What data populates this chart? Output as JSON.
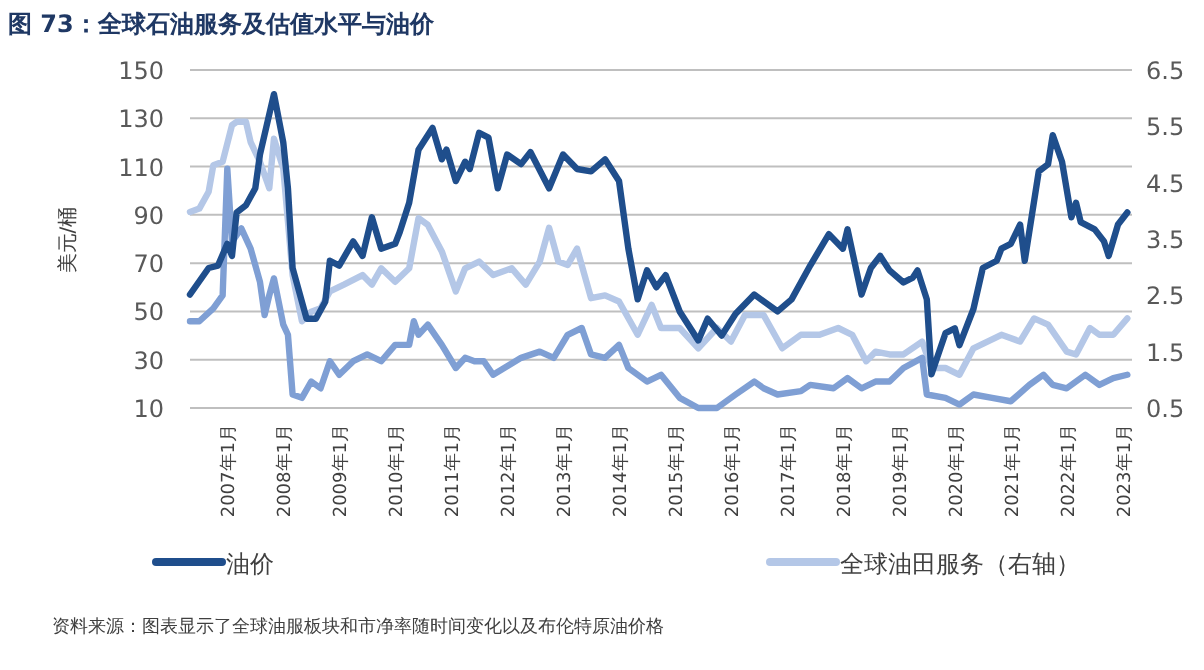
{
  "chart_data": {
    "type": "line",
    "title": "图 73：全球石油服务及估值水平与油价",
    "ylabel": "美元/桶",
    "grid": "y",
    "legend": "bottom",
    "line_style": "solid",
    "marker": "none",
    "annotations": [
      "资料来源：图表显示了全球油服板块和市净率随时间变化以及布伦特原油价格"
    ],
    "xlim": [
      "2006-05",
      "2023-03"
    ],
    "xticks": [
      {
        "value": "2007-01",
        "label": "2007年1月"
      },
      {
        "value": "2008-01",
        "label": "2008年1月"
      },
      {
        "value": "2009-01",
        "label": "2009年1月"
      },
      {
        "value": "2010-01",
        "label": "2010年1月"
      },
      {
        "value": "2011-01",
        "label": "2011年1月"
      },
      {
        "value": "2012-01",
        "label": "2012年1月"
      },
      {
        "value": "2013-01",
        "label": "2013年1月"
      },
      {
        "value": "2014-01",
        "label": "2014年1月"
      },
      {
        "value": "2015-01",
        "label": "2015年1月"
      },
      {
        "value": "2016-01",
        "label": "2016年1月"
      },
      {
        "value": "2017-01",
        "label": "2017年1月"
      },
      {
        "value": "2018-01",
        "label": "2018年1月"
      },
      {
        "value": "2019-01",
        "label": "2019年1月"
      },
      {
        "value": "2020-01",
        "label": "2020年1月"
      },
      {
        "value": "2021-01",
        "label": "2021年1月"
      },
      {
        "value": "2022-01",
        "label": "2022年1月"
      },
      {
        "value": "2023-01",
        "label": "2023年1月"
      }
    ],
    "ylim": [
      10,
      150
    ],
    "yticks": [
      10,
      30,
      50,
      70,
      90,
      110,
      130,
      150
    ],
    "y2lim": [
      0.5,
      6.5
    ],
    "y2ticks": [
      0.5,
      1.5,
      2.5,
      3.5,
      4.5,
      5.5,
      6.5
    ],
    "series": [
      {
        "name": "全球油田服务（右轴）",
        "color": "#b4c7e7",
        "axis": "y2",
        "x": [
          "2006-05",
          "2006-07",
          "2006-09",
          "2006-10",
          "2006-12",
          "2007-02",
          "2007-03",
          "2007-05",
          "2007-06",
          "2007-08",
          "2007-10",
          "2007-11",
          "2008-01",
          "2008-02",
          "2008-03",
          "2008-05",
          "2008-07",
          "2008-09",
          "2008-11",
          "2009-02",
          "2009-06",
          "2009-08",
          "2009-10",
          "2010-01",
          "2010-04",
          "2010-06",
          "2010-08",
          "2010-11",
          "2011-02",
          "2011-04",
          "2011-07",
          "2011-10",
          "2012-02",
          "2012-05",
          "2012-08",
          "2012-10",
          "2012-12",
          "2013-02",
          "2013-04",
          "2013-07",
          "2013-10",
          "2014-01",
          "2014-05",
          "2014-08",
          "2014-10",
          "2015-02",
          "2015-06",
          "2015-10",
          "2016-01",
          "2016-04",
          "2016-08",
          "2016-12",
          "2017-04",
          "2017-08",
          "2017-12",
          "2018-03",
          "2018-06",
          "2018-08",
          "2018-11",
          "2019-02",
          "2019-06",
          "2019-08",
          "2019-11",
          "2020-02",
          "2020-05",
          "2020-08",
          "2020-11",
          "2021-03",
          "2021-06",
          "2021-09",
          "2022-01",
          "2022-03",
          "2022-06",
          "2022-08",
          "2022-11",
          "2023-02"
        ],
        "values": [
          3.98,
          4.04,
          4.34,
          4.81,
          4.87,
          5.52,
          5.58,
          5.58,
          5.22,
          4.87,
          4.4,
          5.28,
          4.75,
          3.81,
          2.86,
          2.04,
          2.21,
          2.27,
          2.57,
          2.69,
          2.86,
          2.69,
          2.98,
          2.74,
          2.98,
          3.87,
          3.75,
          3.28,
          2.57,
          2.98,
          3.1,
          2.86,
          2.98,
          2.69,
          3.1,
          3.7,
          3.1,
          3.04,
          3.33,
          2.45,
          2.5,
          2.39,
          1.8,
          2.33,
          1.92,
          1.92,
          1.56,
          1.92,
          1.68,
          2.15,
          2.15,
          1.56,
          1.8,
          1.8,
          1.92,
          1.8,
          1.33,
          1.5,
          1.45,
          1.45,
          1.68,
          1.21,
          1.21,
          1.09,
          1.56,
          1.68,
          1.8,
          1.68,
          2.09,
          1.98,
          1.5,
          1.45,
          1.92,
          1.8,
          1.8,
          2.09
        ]
      },
      {
        "color": "#7f9fd4",
        "axis": "y2",
        "x": [
          "2006-05",
          "2006-07",
          "2006-10",
          "2006-12",
          "2007-01",
          "2007-02",
          "2007-04",
          "2007-06",
          "2007-08",
          "2007-09",
          "2007-10",
          "2007-11",
          "2008-01",
          "2008-02",
          "2008-03",
          "2008-05",
          "2008-07",
          "2008-09",
          "2008-11",
          "2009-01",
          "2009-04",
          "2009-07",
          "2009-10",
          "2010-01",
          "2010-04",
          "2010-05",
          "2010-06",
          "2010-08",
          "2010-11",
          "2011-02",
          "2011-04",
          "2011-06",
          "2011-08",
          "2011-10",
          "2012-04",
          "2012-08",
          "2012-11",
          "2013-02",
          "2013-05",
          "2013-07",
          "2013-10",
          "2014-01",
          "2014-03",
          "2014-07",
          "2014-10",
          "2015-02",
          "2015-06",
          "2015-10",
          "2016-02",
          "2016-06",
          "2016-08",
          "2016-11",
          "2017-04",
          "2017-06",
          "2017-11",
          "2018-02",
          "2018-05",
          "2018-08",
          "2018-11",
          "2019-02",
          "2019-06",
          "2019-07",
          "2019-11",
          "2020-02",
          "2020-05",
          "2020-09",
          "2021-01",
          "2021-05",
          "2021-08",
          "2021-10",
          "2022-01",
          "2022-05",
          "2022-08",
          "2022-11",
          "2023-02"
        ],
        "values": [
          2.04,
          2.04,
          2.27,
          2.5,
          4.75,
          3.45,
          3.69,
          3.33,
          2.74,
          2.15,
          2.5,
          2.8,
          1.98,
          1.8,
          0.74,
          0.68,
          0.97,
          0.85,
          1.33,
          1.09,
          1.33,
          1.45,
          1.33,
          1.62,
          1.62,
          2.04,
          1.8,
          1.98,
          1.62,
          1.21,
          1.39,
          1.33,
          1.33,
          1.09,
          1.39,
          1.5,
          1.39,
          1.8,
          1.92,
          1.45,
          1.39,
          1.62,
          1.21,
          0.97,
          1.09,
          0.68,
          0.5,
          0.5,
          0.74,
          0.97,
          0.85,
          0.74,
          0.8,
          0.91,
          0.85,
          1.03,
          0.85,
          0.97,
          0.97,
          1.21,
          1.39,
          0.74,
          0.68,
          0.56,
          0.74,
          0.68,
          0.62,
          0.91,
          1.09,
          0.91,
          0.85,
          1.09,
          0.91,
          1.03,
          1.09
        ]
      },
      {
        "name": "油价",
        "color": "#1f4e8c",
        "x": [
          "2006-05",
          "2006-09",
          "2006-11",
          "2007-01",
          "2007-02",
          "2007-03",
          "2007-05",
          "2007-07",
          "2007-08",
          "2007-11",
          "2008-01",
          "2008-02",
          "2008-03",
          "2008-06",
          "2008-08",
          "2008-10",
          "2008-11",
          "2009-01",
          "2009-04",
          "2009-06",
          "2009-08",
          "2009-10",
          "2010-01",
          "2010-02",
          "2010-04",
          "2010-06",
          "2010-09",
          "2010-11",
          "2010-12",
          "2011-02",
          "2011-04",
          "2011-05",
          "2011-07",
          "2011-09",
          "2011-11",
          "2012-01",
          "2012-04",
          "2012-06",
          "2012-10",
          "2013-01",
          "2013-04",
          "2013-07",
          "2013-10",
          "2014-01",
          "2014-03",
          "2014-05",
          "2014-07",
          "2014-09",
          "2014-11",
          "2015-02",
          "2015-06",
          "2015-08",
          "2015-11",
          "2016-02",
          "2016-06",
          "2016-11",
          "2017-02",
          "2017-06",
          "2017-10",
          "2018-01",
          "2018-02",
          "2018-05",
          "2018-07",
          "2018-09",
          "2018-11",
          "2019-02",
          "2019-04",
          "2019-05",
          "2019-07",
          "2019-08",
          "2019-11",
          "2020-01",
          "2020-02",
          "2020-05",
          "2020-07",
          "2020-10",
          "2020-11",
          "2021-01",
          "2021-03",
          "2021-04",
          "2021-07",
          "2021-09",
          "2021-10",
          "2021-12",
          "2022-02",
          "2022-03",
          "2022-04",
          "2022-07",
          "2022-09",
          "2022-10",
          "2022-12",
          "2023-02"
        ],
        "values": [
          57,
          68,
          69,
          78,
          73,
          91,
          94,
          101,
          115,
          140,
          120,
          101,
          68,
          47,
          47,
          54,
          71,
          69,
          79,
          73,
          89,
          76,
          78,
          83,
          95,
          117,
          126,
          113,
          117,
          104,
          112,
          109,
          124,
          122,
          101,
          115,
          111,
          116,
          101,
          115,
          109,
          108,
          113,
          104,
          76,
          55,
          67,
          60,
          65,
          50,
          38,
          47,
          40,
          49,
          57,
          50,
          55,
          69,
          82,
          76,
          84,
          57,
          68,
          73,
          67,
          62,
          64,
          67,
          55,
          24,
          41,
          43,
          36,
          51,
          68,
          71,
          76,
          78,
          86,
          71,
          108,
          111,
          123,
          112,
          89,
          95,
          87,
          84,
          79,
          73,
          86,
          91
        ]
      }
    ]
  }
}
